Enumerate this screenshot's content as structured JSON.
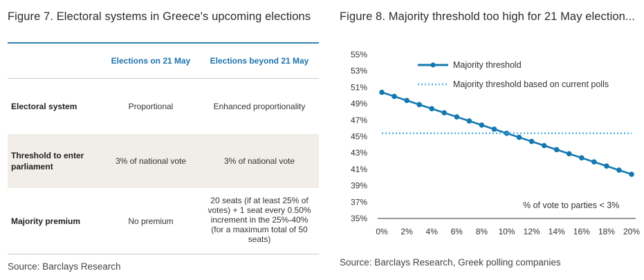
{
  "figure7": {
    "title": "Figure 7. Electoral systems in Greece's upcoming elections",
    "columns": [
      "Elections on 21 May",
      "Elections beyond 21 May"
    ],
    "rows": [
      {
        "label": "Electoral system",
        "values": [
          "Proportional",
          "Enhanced proportionality"
        ]
      },
      {
        "label": "Threshold to enter parliament",
        "values": [
          "3% of national vote",
          "3% of national vote"
        ]
      },
      {
        "label": "Majority premium",
        "values": [
          "No premium",
          "20 seats (if at least 25% of votes) + 1 seat every 0.50% increment in the 25%-40% (for a maximum total of 50 seats)"
        ]
      }
    ],
    "source": "Source: Barclays Research"
  },
  "figure8": {
    "title": "Figure 8. Majority threshold too high for 21 May election...",
    "source": "Source: Barclays Research, Greek polling companies",
    "annotation": "% of vote to parties < 3%"
  },
  "chart_data": {
    "type": "line",
    "x": [
      0,
      1,
      2,
      3,
      4,
      5,
      6,
      7,
      8,
      9,
      10,
      11,
      12,
      13,
      14,
      15,
      16,
      17,
      18,
      19,
      20
    ],
    "x_ticks": [
      "0%",
      "2%",
      "4%",
      "6%",
      "8%",
      "10%",
      "12%",
      "14%",
      "16%",
      "18%",
      "20%"
    ],
    "y_ticks": [
      "35%",
      "37%",
      "39%",
      "41%",
      "43%",
      "45%",
      "47%",
      "49%",
      "51%",
      "53%",
      "55%"
    ],
    "xlim": [
      0,
      20
    ],
    "ylim": [
      35,
      55
    ],
    "series": [
      {
        "name": "Majority threshold",
        "color": "#1479b0",
        "style": "solid-markers",
        "values": [
          50.4,
          49.9,
          49.4,
          48.9,
          48.4,
          47.9,
          47.4,
          46.9,
          46.4,
          45.9,
          45.4,
          44.9,
          44.4,
          43.9,
          43.4,
          42.9,
          42.4,
          41.9,
          41.4,
          40.9,
          40.4
        ]
      },
      {
        "name": "Majority threshold based on current polls",
        "color": "#4fb3e0",
        "style": "dotted",
        "values": [
          45.4,
          45.4,
          45.4,
          45.4,
          45.4,
          45.4,
          45.4,
          45.4,
          45.4,
          45.4,
          45.4,
          45.4,
          45.4,
          45.4,
          45.4,
          45.4,
          45.4,
          45.4,
          45.4,
          45.4,
          45.4
        ]
      }
    ],
    "grid": false,
    "legend": "top-left"
  }
}
